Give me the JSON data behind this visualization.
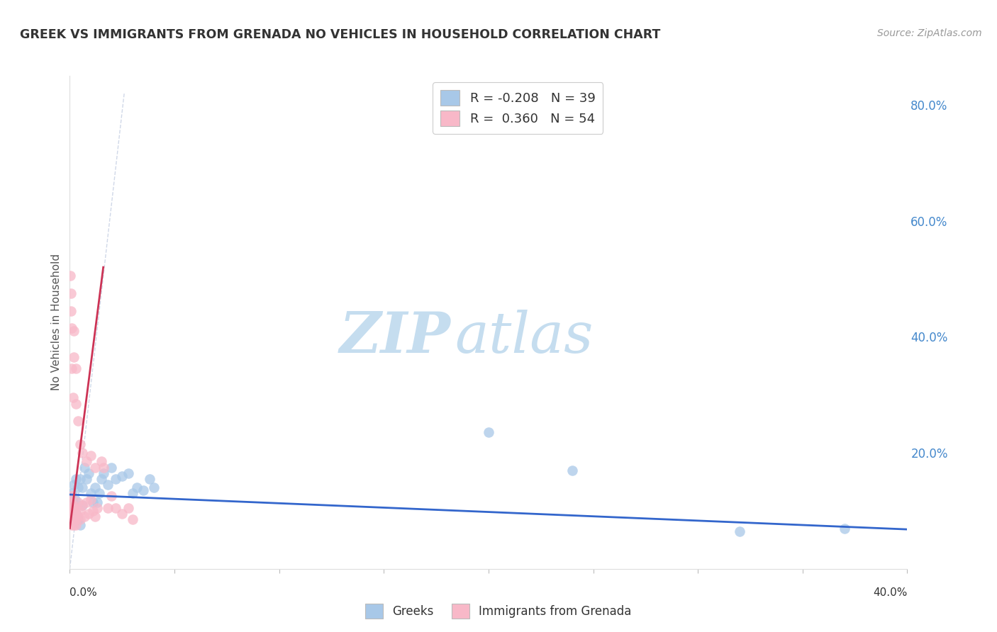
{
  "title": "GREEK VS IMMIGRANTS FROM GRENADA NO VEHICLES IN HOUSEHOLD CORRELATION CHART",
  "source": "Source: ZipAtlas.com",
  "ylabel": "No Vehicles in Household",
  "legend_blue": {
    "R": "-0.208",
    "N": "39",
    "label": "Greeks"
  },
  "legend_pink": {
    "R": "0.360",
    "N": "54",
    "label": "Immigrants from Grenada"
  },
  "watermark_zip": "ZIP",
  "watermark_atlas": "atlas",
  "blue_color": "#a8c8e8",
  "pink_color": "#f8b8c8",
  "blue_line_color": "#3366cc",
  "pink_line_color": "#cc3355",
  "dashed_line_color": "#d0d8e8",
  "background": "#ffffff",
  "grid_color": "#dce8f0",
  "xlim": [
    0.0,
    0.4
  ],
  "ylim": [
    0.0,
    0.85
  ],
  "blue_scatter_x": [
    0.0005,
    0.001,
    0.001,
    0.0015,
    0.002,
    0.002,
    0.0025,
    0.003,
    0.003,
    0.004,
    0.004,
    0.005,
    0.005,
    0.006,
    0.006,
    0.007,
    0.008,
    0.009,
    0.01,
    0.011,
    0.012,
    0.013,
    0.014,
    0.015,
    0.016,
    0.018,
    0.02,
    0.022,
    0.025,
    0.028,
    0.03,
    0.032,
    0.035,
    0.038,
    0.04,
    0.2,
    0.24,
    0.32,
    0.37
  ],
  "blue_scatter_y": [
    0.095,
    0.105,
    0.13,
    0.115,
    0.1,
    0.145,
    0.12,
    0.095,
    0.155,
    0.085,
    0.14,
    0.075,
    0.155,
    0.14,
    0.11,
    0.175,
    0.155,
    0.165,
    0.13,
    0.115,
    0.14,
    0.115,
    0.13,
    0.155,
    0.165,
    0.145,
    0.175,
    0.155,
    0.16,
    0.165,
    0.13,
    0.14,
    0.135,
    0.155,
    0.14,
    0.235,
    0.17,
    0.065,
    0.07
  ],
  "pink_scatter_x": [
    0.0003,
    0.0005,
    0.0005,
    0.0008,
    0.001,
    0.001,
    0.001,
    0.001,
    0.0012,
    0.0015,
    0.0015,
    0.002,
    0.002,
    0.002,
    0.0025,
    0.003,
    0.003,
    0.003,
    0.004,
    0.004,
    0.005,
    0.005,
    0.006,
    0.007,
    0.008,
    0.009,
    0.01,
    0.011,
    0.012,
    0.013,
    0.0003,
    0.0005,
    0.0006,
    0.001,
    0.001,
    0.0015,
    0.002,
    0.002,
    0.003,
    0.003,
    0.004,
    0.005,
    0.006,
    0.008,
    0.01,
    0.012,
    0.015,
    0.016,
    0.018,
    0.02,
    0.022,
    0.025,
    0.028,
    0.03
  ],
  "pink_scatter_y": [
    0.115,
    0.1,
    0.09,
    0.09,
    0.125,
    0.105,
    0.085,
    0.075,
    0.095,
    0.11,
    0.085,
    0.105,
    0.09,
    0.075,
    0.1,
    0.095,
    0.085,
    0.075,
    0.115,
    0.09,
    0.1,
    0.085,
    0.11,
    0.09,
    0.115,
    0.095,
    0.12,
    0.1,
    0.09,
    0.105,
    0.505,
    0.475,
    0.445,
    0.415,
    0.345,
    0.295,
    0.41,
    0.365,
    0.345,
    0.285,
    0.255,
    0.215,
    0.2,
    0.185,
    0.195,
    0.175,
    0.185,
    0.175,
    0.105,
    0.125,
    0.105,
    0.095,
    0.105,
    0.085
  ],
  "blue_line_x": [
    0.0,
    0.4
  ],
  "blue_line_y": [
    0.128,
    0.068
  ],
  "pink_line_x": [
    0.0,
    0.016
  ],
  "pink_line_y": [
    0.07,
    0.52
  ],
  "dash_line_x": [
    0.0,
    0.026
  ],
  "dash_line_y": [
    0.0,
    0.82
  ]
}
